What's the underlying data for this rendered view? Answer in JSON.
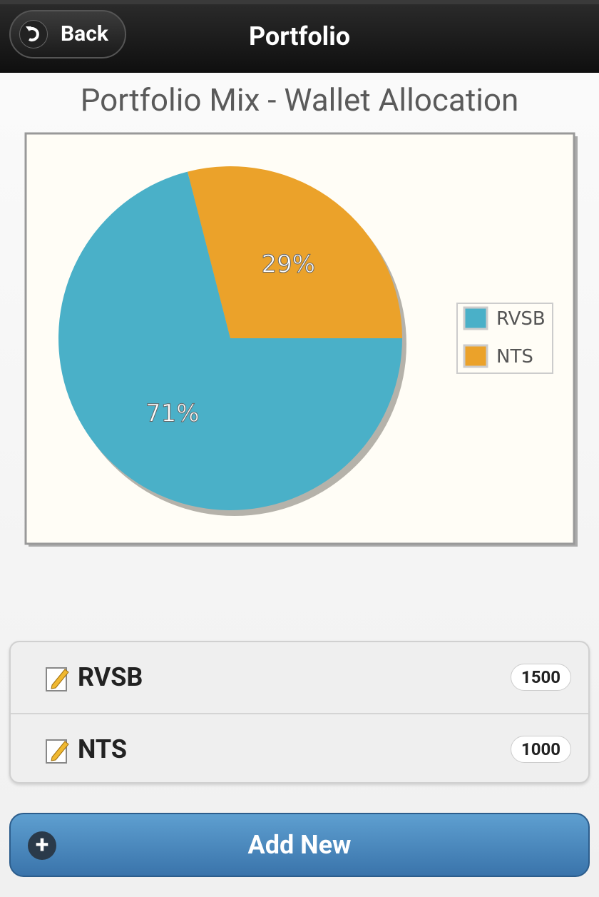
{
  "header": {
    "back": "Back",
    "title": "Portfolio"
  },
  "chart_data": {
    "type": "pie",
    "title": "Portfolio Mix - Wallet Allocation",
    "categories": [
      "RVSB",
      "NTS"
    ],
    "values": [
      71,
      29
    ],
    "value_labels": [
      "71%",
      "29%"
    ],
    "colors": [
      "#4ab0c8",
      "#eba22a"
    ],
    "legend": "right"
  },
  "list": {
    "items": [
      {
        "label": "RVSB",
        "count": "1500"
      },
      {
        "label": "NTS",
        "count": "1000"
      }
    ]
  },
  "button": {
    "label": "Add New"
  }
}
